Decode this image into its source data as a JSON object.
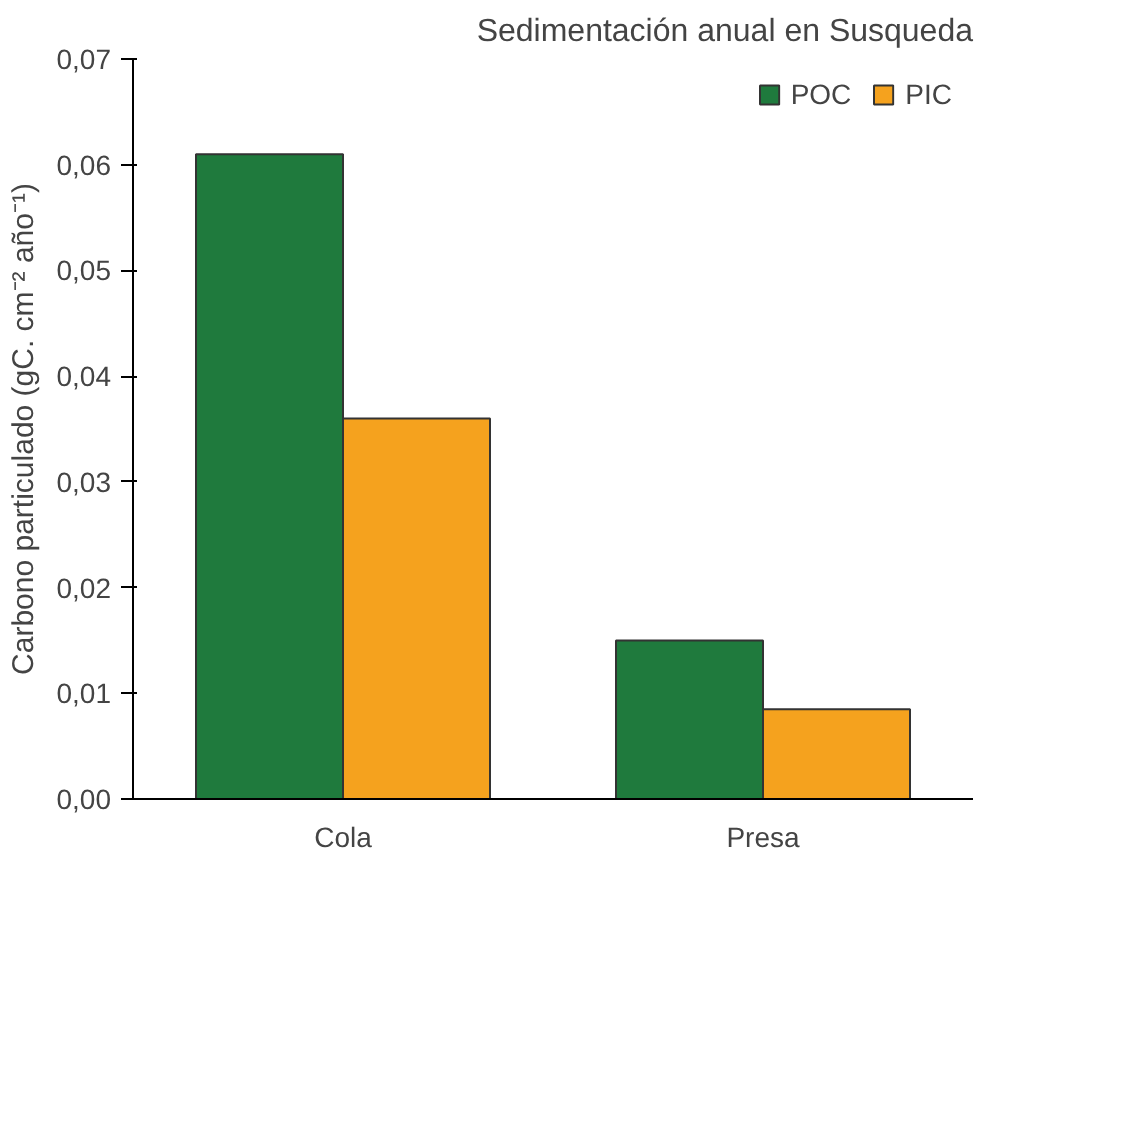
{
  "chart_data": {
    "type": "bar",
    "title": "Sedimentación anual en Susqueda",
    "ylabel": "Carbono particulado (gC. cm⁻² año⁻¹)",
    "categories": [
      "Cola",
      "Presa"
    ],
    "series": [
      {
        "name": "POC",
        "color": "#1f7a3d",
        "values": [
          0.061,
          0.015
        ]
      },
      {
        "name": "PIC",
        "color": "#f5a21e",
        "values": [
          0.036,
          0.0085
        ]
      }
    ],
    "ylim": [
      0,
      0.07
    ],
    "yticks": [
      {
        "value": 0,
        "label": "0,00"
      },
      {
        "value": 0.01,
        "label": "0,01"
      },
      {
        "value": 0.02,
        "label": "0,02"
      },
      {
        "value": 0.03,
        "label": "0,03"
      },
      {
        "value": 0.04,
        "label": "0,04"
      },
      {
        "value": 0.05,
        "label": "0,05"
      },
      {
        "value": 0.06,
        "label": "0,06"
      },
      {
        "value": 0.07,
        "label": "0,07"
      }
    ],
    "grid": false,
    "legend": "top right"
  }
}
